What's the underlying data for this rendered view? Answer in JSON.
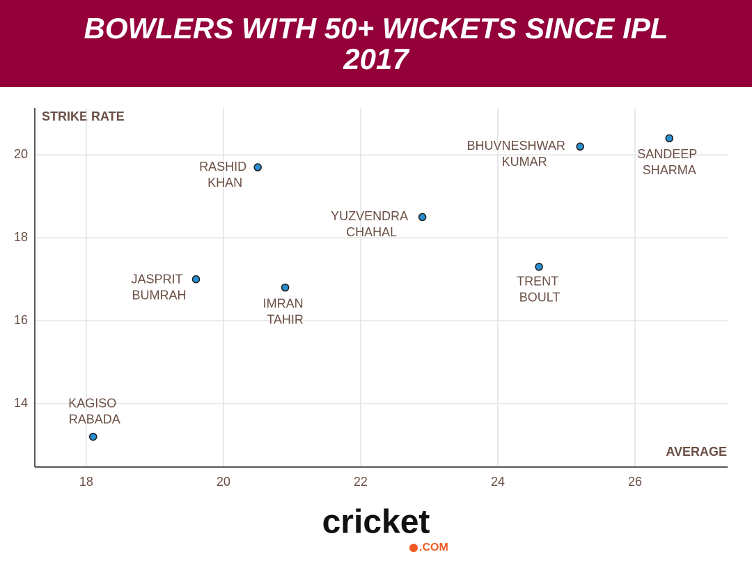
{
  "chart_data": {
    "type": "scatter",
    "title": "BOWLERS WITH 50+ WICKETS SINCE IPL 2017",
    "xlabel": "AVERAGE",
    "ylabel": "STRIKE RATE",
    "labels": [
      [
        "KAGISO",
        "RABADA"
      ],
      [
        "JASPRIT",
        "BUMRAH"
      ],
      [
        "RASHID",
        "KHAN"
      ],
      [
        "IMRAN",
        "TAHIR"
      ],
      [
        "YUZVENDRA",
        "CHAHAL"
      ],
      [
        "TRENT",
        "BOULT"
      ],
      [
        "BHUVNESHWAR",
        "KUMAR"
      ],
      [
        "SANDEEP",
        "SHARMA"
      ]
    ],
    "x": [
      18.1,
      19.6,
      20.5,
      20.9,
      22.9,
      24.6,
      25.2,
      26.5
    ],
    "values": [
      13.2,
      17.0,
      19.7,
      16.8,
      18.5,
      17.3,
      20.2,
      20.4
    ],
    "color": "#2a8fd0",
    "xlim": [
      17.25,
      27.35
    ],
    "xticks": [
      18,
      20,
      22,
      24,
      26
    ],
    "ylim": [
      12.47,
      21.13
    ],
    "yticks": [
      14,
      16,
      18,
      20
    ],
    "grid": true
  },
  "footer": {
    "logo": "cricket",
    "logo_suffix": ".COM"
  }
}
